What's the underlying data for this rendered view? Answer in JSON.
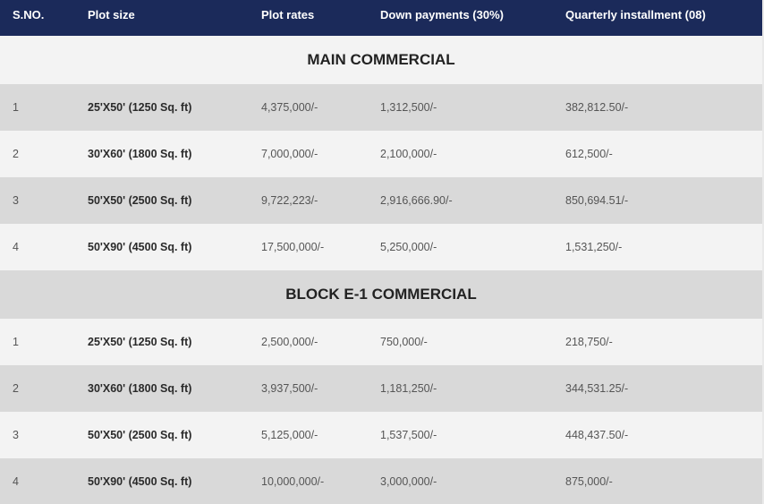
{
  "colors": {
    "header_bg": "#1b2a5a",
    "header_text": "#ffffff",
    "row_dark": "#d9d9d9",
    "row_light": "#f3f3f3"
  },
  "header": {
    "sno": "S.NO.",
    "plot_size": "Plot size",
    "plot_rates": "Plot rates",
    "down_payments": "Down payments (30%)",
    "quarterly_installment": "Quarterly installment (08)"
  },
  "sections": [
    {
      "title": "MAIN COMMERCIAL",
      "rows": [
        {
          "sno": "1",
          "plot_size": "25'X50' (1250 Sq. ft)",
          "plot_rate": "4,375,000/-",
          "down_payment": "1,312,500/-",
          "installment": "382,812.50/-"
        },
        {
          "sno": "2",
          "plot_size": "30'X60' (1800 Sq. ft)",
          "plot_rate": "7,000,000/-",
          "down_payment": "2,100,000/-",
          "installment": "612,500/-"
        },
        {
          "sno": "3",
          "plot_size": "50'X50' (2500 Sq. ft)",
          "plot_rate": "9,722,223/-",
          "down_payment": "2,916,666.90/-",
          "installment": "850,694.51/-"
        },
        {
          "sno": "4",
          "plot_size": "50'X90' (4500 Sq. ft)",
          "plot_rate": "17,500,000/-",
          "down_payment": "5,250,000/-",
          "installment": "1,531,250/-"
        }
      ]
    },
    {
      "title": "BLOCK E-1 COMMERCIAL",
      "rows": [
        {
          "sno": "1",
          "plot_size": "25'X50' (1250 Sq. ft)",
          "plot_rate": "2,500,000/-",
          "down_payment": "750,000/-",
          "installment": "218,750/-"
        },
        {
          "sno": "2",
          "plot_size": "30'X60' (1800 Sq. ft)",
          "plot_rate": "3,937,500/-",
          "down_payment": "1,181,250/-",
          "installment": "344,531.25/-"
        },
        {
          "sno": "3",
          "plot_size": "50'X50' (2500 Sq. ft)",
          "plot_rate": "5,125,000/-",
          "down_payment": "1,537,500/-",
          "installment": "448,437.50/-"
        },
        {
          "sno": "4",
          "plot_size": "50'X90' (4500 Sq. ft)",
          "plot_rate": "10,000,000/-",
          "down_payment": "3,000,000/-",
          "installment": "875,000/-"
        }
      ]
    }
  ]
}
